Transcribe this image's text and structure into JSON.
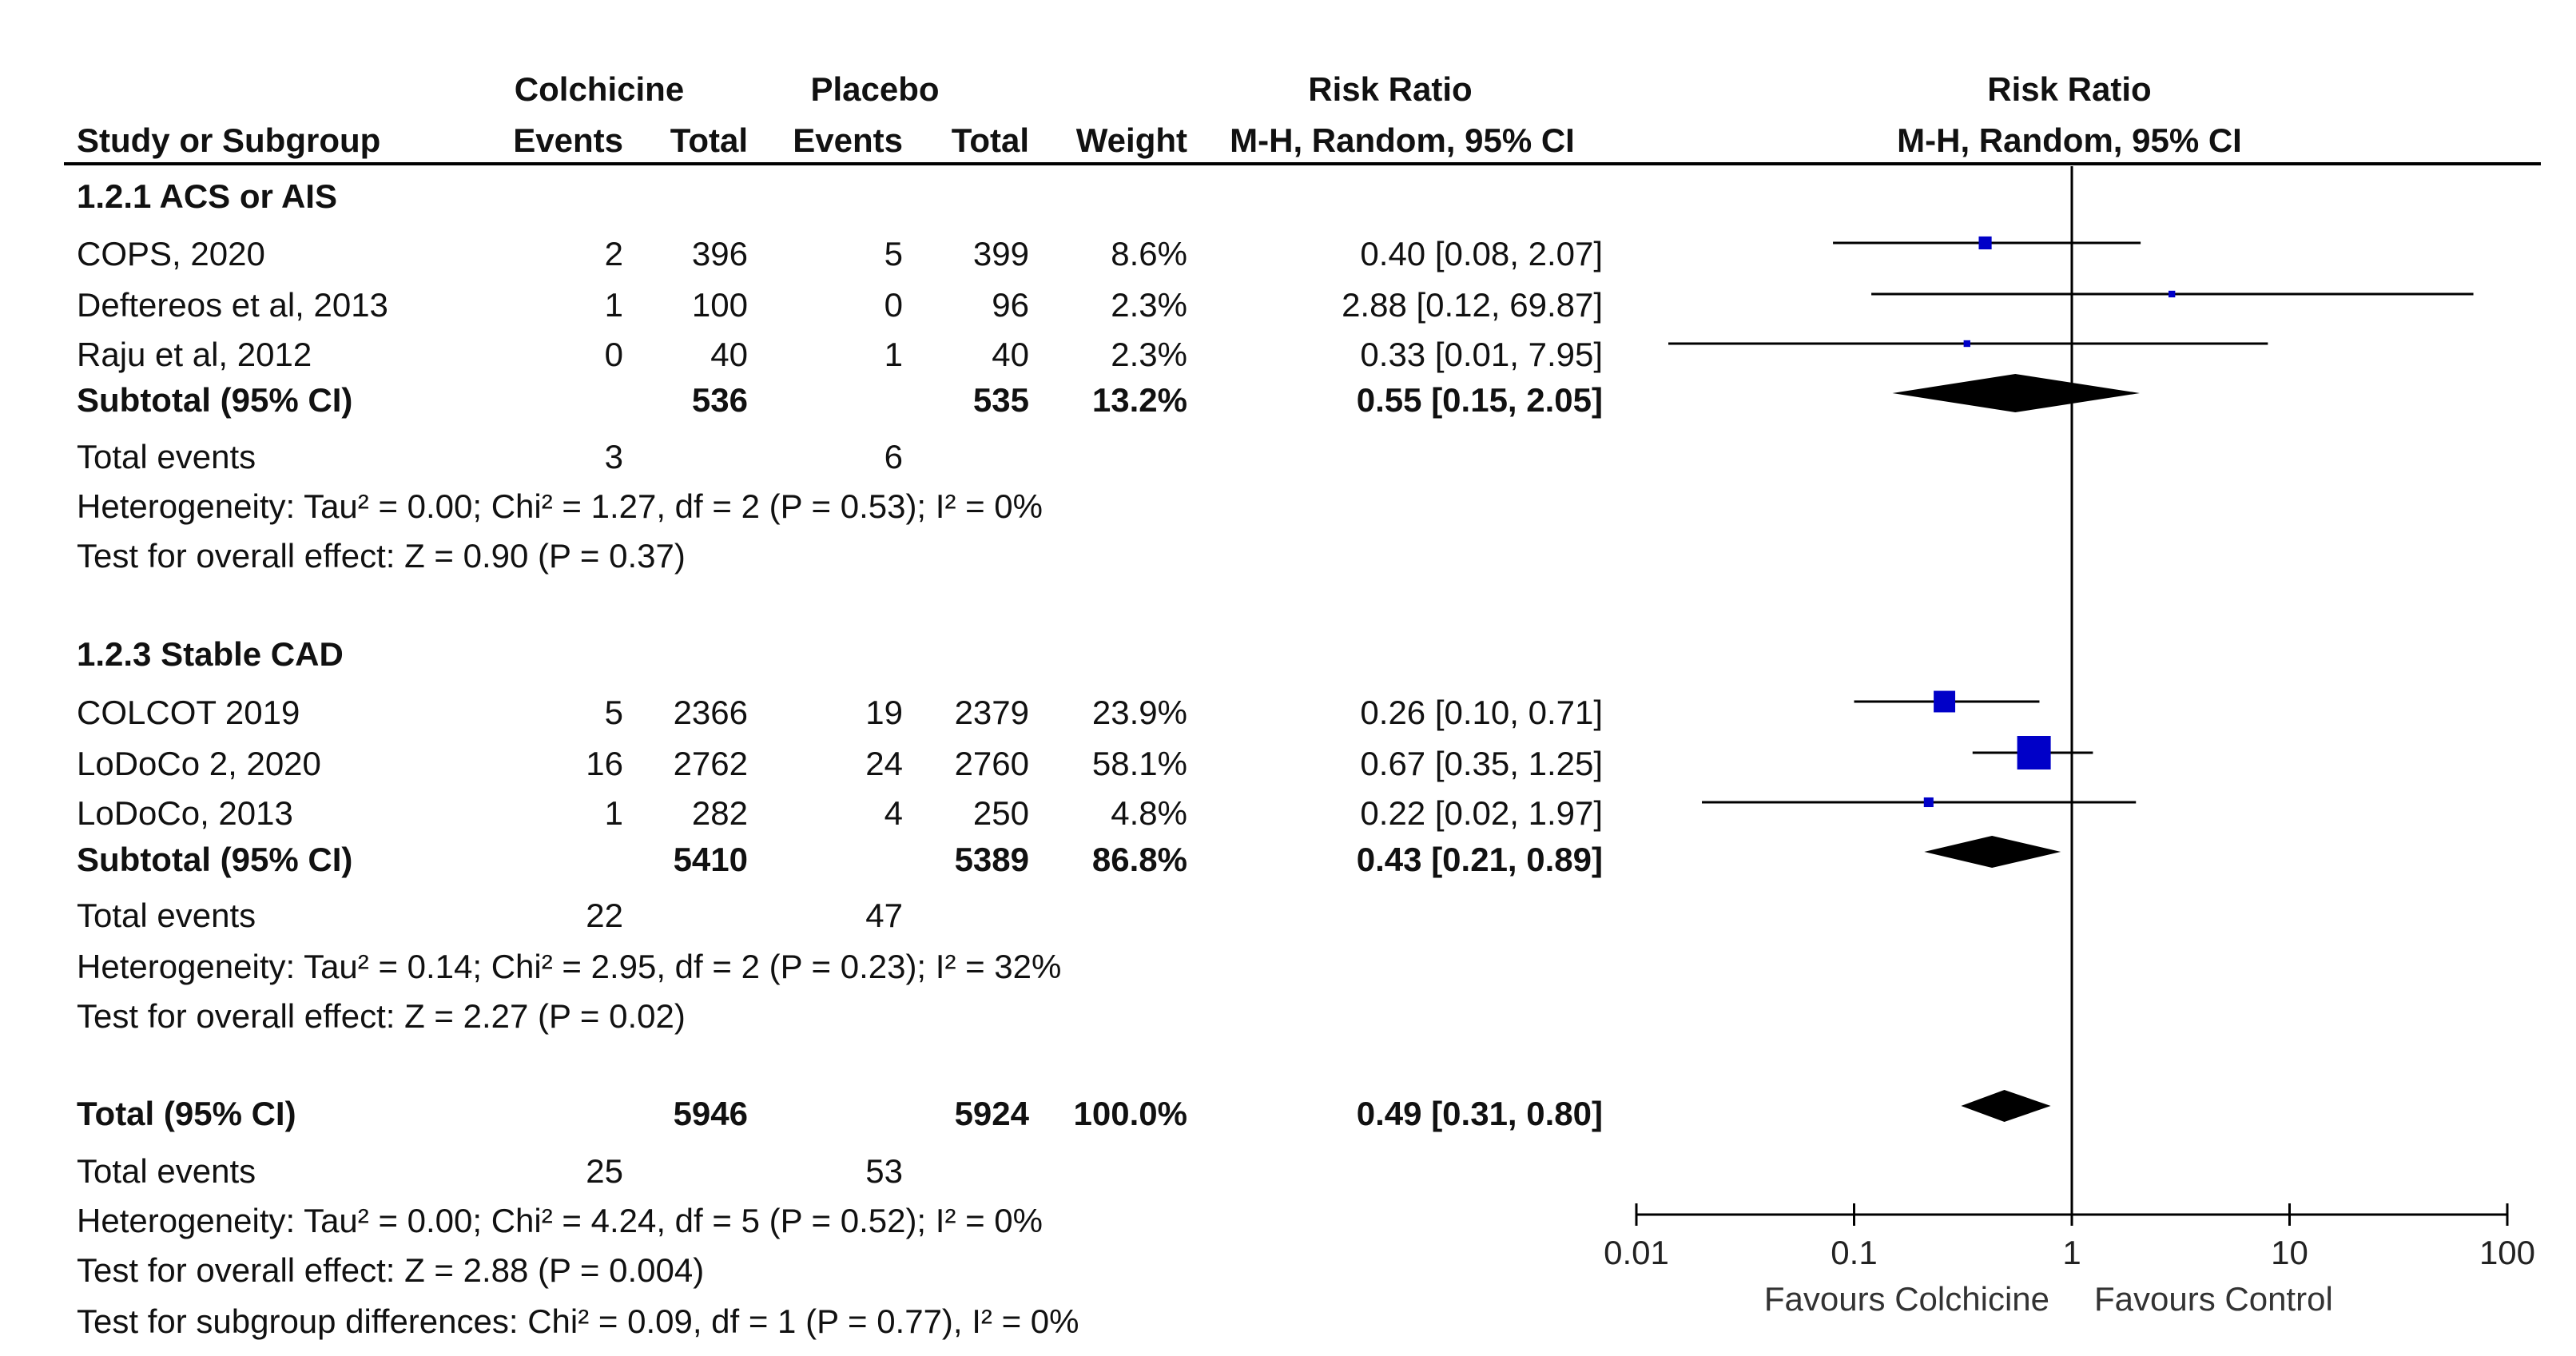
{
  "header": {
    "group1": "Colchicine",
    "group2": "Placebo",
    "rr_title": "Risk Ratio",
    "plot_title": "Risk Ratio",
    "col_study": "Study or Subgroup",
    "col_events1": "Events",
    "col_total1": "Total",
    "col_events2": "Events",
    "col_total2": "Total",
    "col_weight": "Weight",
    "col_method": "M-H, Random, 95% CI",
    "plot_method": "M-H, Random, 95% CI"
  },
  "rows": [
    {
      "kind": "group",
      "label": "1.2.1 ACS or AIS"
    },
    {
      "kind": "study",
      "label": "COPS, 2020",
      "e1": "2",
      "n1": "396",
      "e2": "5",
      "n2": "399",
      "weight": "8.6%",
      "ci": "0.40 [0.08, 2.07]"
    },
    {
      "kind": "study",
      "label": "Deftereos et al, 2013",
      "e1": "1",
      "n1": "100",
      "e2": "0",
      "n2": "96",
      "weight": "2.3%",
      "ci": "2.88 [0.12, 69.87]"
    },
    {
      "kind": "study",
      "label": "Raju et al, 2012",
      "e1": "0",
      "n1": "40",
      "e2": "1",
      "n2": "40",
      "weight": "2.3%",
      "ci": "0.33 [0.01, 7.95]"
    },
    {
      "kind": "subtotal",
      "label": "Subtotal (95% CI)",
      "n1": "536",
      "n2": "535",
      "weight": "13.2%",
      "ci": "0.55 [0.15, 2.05]"
    },
    {
      "kind": "events",
      "label": "Total events",
      "e1": "3",
      "e2": "6"
    },
    {
      "kind": "note",
      "label": "Heterogeneity: Tau² = 0.00; Chi² = 1.27, df = 2 (P = 0.53); I² = 0%"
    },
    {
      "kind": "note",
      "label": "Test for overall effect: Z = 0.90 (P = 0.37)"
    },
    {
      "kind": "group",
      "label": "1.2.3 Stable CAD"
    },
    {
      "kind": "study",
      "label": "COLCOT 2019",
      "e1": "5",
      "n1": "2366",
      "e2": "19",
      "n2": "2379",
      "weight": "23.9%",
      "ci": "0.26 [0.10, 0.71]"
    },
    {
      "kind": "study",
      "label": "LoDoCo 2, 2020",
      "e1": "16",
      "n1": "2762",
      "e2": "24",
      "n2": "2760",
      "weight": "58.1%",
      "ci": "0.67 [0.35, 1.25]"
    },
    {
      "kind": "study",
      "label": "LoDoCo, 2013",
      "e1": "1",
      "n1": "282",
      "e2": "4",
      "n2": "250",
      "weight": "4.8%",
      "ci": "0.22 [0.02, 1.97]"
    },
    {
      "kind": "subtotal",
      "label": "Subtotal (95% CI)",
      "n1": "5410",
      "n2": "5389",
      "weight": "86.8%",
      "ci": "0.43 [0.21, 0.89]"
    },
    {
      "kind": "events",
      "label": "Total events",
      "e1": "22",
      "e2": "47"
    },
    {
      "kind": "note",
      "label": "Heterogeneity: Tau² = 0.14; Chi² = 2.95, df = 2 (P = 0.23); I² = 32%"
    },
    {
      "kind": "note",
      "label": "Test for overall effect: Z = 2.27 (P = 0.02)"
    },
    {
      "kind": "total",
      "label": "Total (95% CI)",
      "n1": "5946",
      "n2": "5924",
      "weight": "100.0%",
      "ci": "0.49 [0.31, 0.80]"
    },
    {
      "kind": "events",
      "label": "Total events",
      "e1": "25",
      "e2": "53"
    },
    {
      "kind": "note",
      "label": "Heterogeneity: Tau² = 0.00; Chi² = 4.24, df = 5 (P = 0.52); I² = 0%"
    },
    {
      "kind": "note",
      "label": "Test for overall effect: Z = 2.88 (P = 0.004)"
    },
    {
      "kind": "note",
      "label": "Test for subgroup differences: Chi² = 0.09, df = 1 (P = 0.77), I² = 0%"
    }
  ],
  "chart_data": {
    "type": "forest",
    "xscale": "log",
    "xlim": [
      0.01,
      100
    ],
    "xticks": [
      0.01,
      0.1,
      1,
      10,
      100
    ],
    "xtick_labels": [
      "0.01",
      "0.1",
      "1",
      "10",
      "100"
    ],
    "null_line": 1,
    "favours_left": "Favours Colchicine",
    "favours_right": "Favours Control",
    "colors": {
      "study_marker": "#0000c8",
      "summary": "#000000",
      "line": "#000000"
    },
    "studies": [
      {
        "label": "COPS, 2020",
        "rr": 0.4,
        "lo": 0.08,
        "hi": 2.07,
        "weight": 8.6
      },
      {
        "label": "Deftereos et al, 2013",
        "rr": 2.88,
        "lo": 0.12,
        "hi": 69.87,
        "weight": 2.3
      },
      {
        "label": "Raju et al, 2012",
        "rr": 0.33,
        "lo": 0.01,
        "hi": 7.95,
        "weight": 2.3
      },
      {
        "label": "COLCOT 2019",
        "rr": 0.26,
        "lo": 0.1,
        "hi": 0.71,
        "weight": 23.9
      },
      {
        "label": "LoDoCo 2, 2020",
        "rr": 0.67,
        "lo": 0.35,
        "hi": 1.25,
        "weight": 58.1
      },
      {
        "label": "LoDoCo, 2013",
        "rr": 0.22,
        "lo": 0.02,
        "hi": 1.97,
        "weight": 4.8
      }
    ],
    "summaries": [
      {
        "label": "Subtotal 1.2.1 ACS or AIS",
        "rr": 0.55,
        "lo": 0.15,
        "hi": 2.05
      },
      {
        "label": "Subtotal 1.2.3 Stable CAD",
        "rr": 0.43,
        "lo": 0.21,
        "hi": 0.89
      },
      {
        "label": "Total (95% CI)",
        "rr": 0.49,
        "lo": 0.31,
        "hi": 0.8
      }
    ]
  }
}
